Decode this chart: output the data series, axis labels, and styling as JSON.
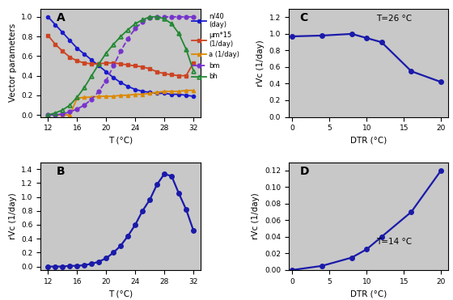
{
  "background_color": "#c8c8c8",
  "line_color": "#1a1aaa",
  "A_T": [
    12,
    13,
    14,
    15,
    16,
    17,
    18,
    19,
    20,
    21,
    22,
    23,
    24,
    25,
    26,
    27,
    28,
    29,
    30,
    31,
    32
  ],
  "A_n40": [
    1.0,
    0.92,
    0.84,
    0.76,
    0.68,
    0.62,
    0.56,
    0.5,
    0.44,
    0.38,
    0.33,
    0.29,
    0.26,
    0.24,
    0.23,
    0.22,
    0.22,
    0.21,
    0.21,
    0.2,
    0.19
  ],
  "A_mu15": [
    0.81,
    0.72,
    0.65,
    0.59,
    0.55,
    0.53,
    0.52,
    0.52,
    0.53,
    0.53,
    0.52,
    0.51,
    0.5,
    0.49,
    0.47,
    0.44,
    0.42,
    0.41,
    0.4,
    0.4,
    0.53
  ],
  "A_a": [
    0.0,
    0.0,
    0.0,
    0.0,
    0.17,
    0.18,
    0.18,
    0.19,
    0.19,
    0.19,
    0.2,
    0.2,
    0.21,
    0.21,
    0.22,
    0.23,
    0.24,
    0.24,
    0.24,
    0.25,
    0.25
  ],
  "A_bm": [
    0.0,
    0.0,
    0.01,
    0.03,
    0.06,
    0.1,
    0.16,
    0.24,
    0.35,
    0.5,
    0.65,
    0.78,
    0.88,
    0.95,
    0.99,
    1.0,
    1.0,
    1.0,
    1.0,
    1.0,
    1.0
  ],
  "A_bh": [
    0.0,
    0.02,
    0.05,
    0.1,
    0.18,
    0.28,
    0.4,
    0.52,
    0.63,
    0.72,
    0.8,
    0.87,
    0.93,
    0.97,
    1.0,
    1.0,
    0.98,
    0.93,
    0.83,
    0.67,
    0.45
  ],
  "B_T": [
    12,
    13,
    14,
    15,
    16,
    17,
    18,
    19,
    20,
    21,
    22,
    23,
    24,
    25,
    26,
    27,
    28,
    29,
    30,
    31,
    32
  ],
  "B_rVc": [
    0.0,
    0.0,
    0.0,
    0.01,
    0.01,
    0.02,
    0.04,
    0.07,
    0.12,
    0.2,
    0.3,
    0.44,
    0.6,
    0.8,
    0.96,
    1.18,
    1.33,
    1.3,
    1.05,
    0.82,
    0.52
  ],
  "C_DTR": [
    0,
    4,
    8,
    10,
    12,
    16,
    20
  ],
  "C_rVc": [
    0.97,
    0.98,
    1.0,
    0.95,
    0.9,
    0.55,
    0.42
  ],
  "D_DTR": [
    0,
    4,
    8,
    10,
    12,
    16,
    20
  ],
  "D_rVc": [
    0.0,
    0.005,
    0.015,
    0.025,
    0.04,
    0.07,
    0.12
  ],
  "legend_labels": [
    "n/40\n(day)",
    "μm*15\n(1/day)",
    "a (1/day)",
    "bm",
    "bh"
  ],
  "legend_colors": [
    "#1a1acc",
    "#cc4422",
    "#dd8800",
    "#7733cc",
    "#228833"
  ],
  "legend_linestyles": [
    "-",
    "-",
    "-",
    "--",
    "-"
  ],
  "legend_markers": [
    "o",
    "s",
    "^",
    "o",
    "^"
  ],
  "legend_markerfacecolors": [
    "#1a1acc",
    "#cc4422",
    "#dd8800",
    "#7733cc",
    "none"
  ]
}
